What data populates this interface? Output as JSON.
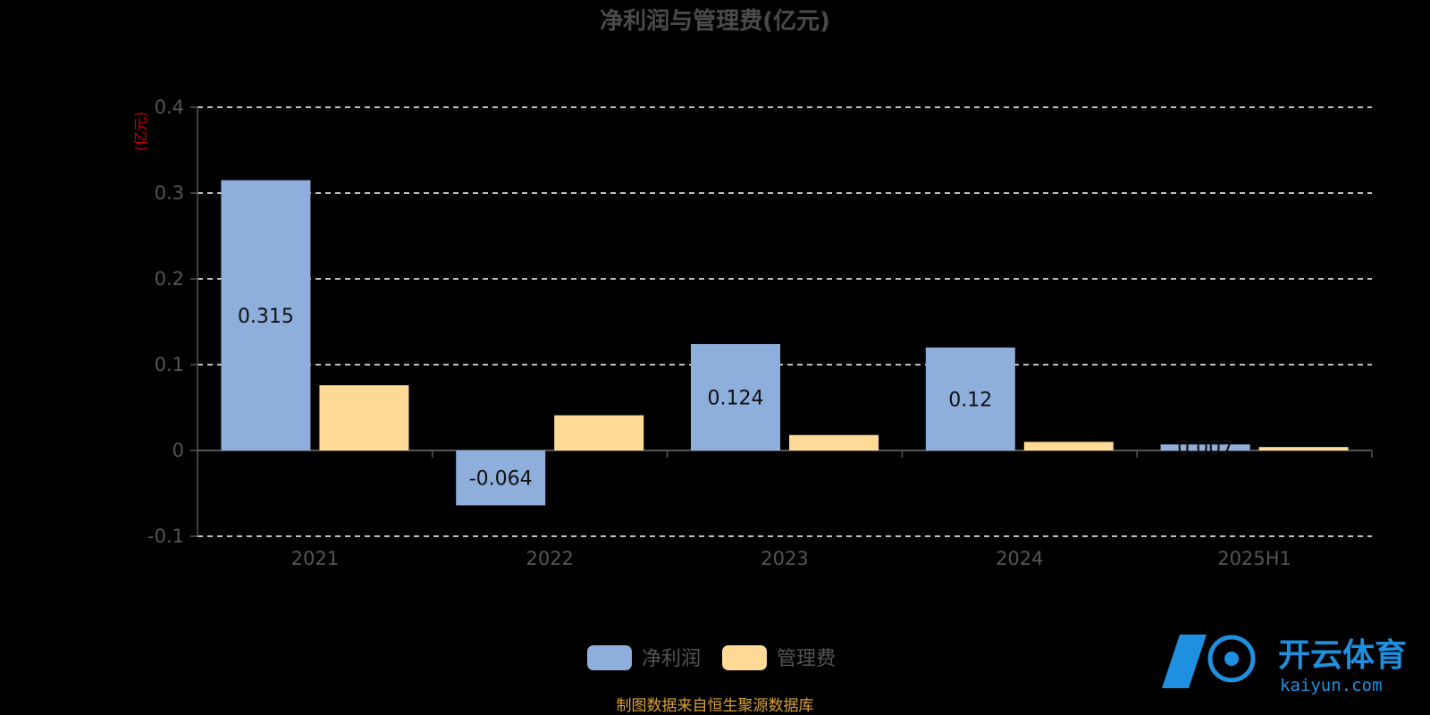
{
  "chart_data": {
    "type": "bar",
    "title": "净利润与管理费(亿元)",
    "ylabel": "(亿元)",
    "categories": [
      "2021",
      "2022",
      "2023",
      "2024",
      "2025H1"
    ],
    "series": [
      {
        "name": "净利润",
        "values": [
          0.315,
          -0.064,
          0.124,
          0.12,
          0.007
        ],
        "labels": [
          "0.315",
          "-0.064",
          "0.124",
          "0.12",
          "0.007"
        ],
        "color": "#8eaedb"
      },
      {
        "name": "管理费",
        "values": [
          0.076,
          0.041,
          0.018,
          0.01,
          0.004
        ],
        "color": "#ffd996"
      }
    ],
    "ylim": [
      -0.1,
      0.4
    ],
    "yticks": [
      -0.1,
      0,
      0.1,
      0.2,
      0.3,
      0.4
    ],
    "ytick_labels": [
      "-0.1",
      "0",
      "0.1",
      "0.2",
      "0.3",
      "0.4"
    ],
    "grid": true,
    "legend_position": "bottom-center"
  },
  "source": "制图数据来自恒生聚源数据库",
  "watermark": {
    "brand": "开云体育",
    "domain": "kaiyun.com"
  },
  "colors": {
    "grid": "#ffffff",
    "axis": "#555555",
    "title": "#4a4a4a"
  }
}
